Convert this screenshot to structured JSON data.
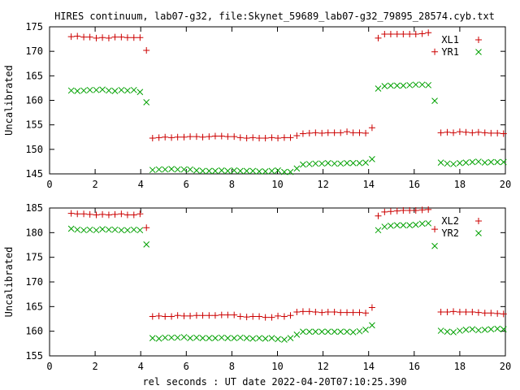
{
  "title": "HIRES continuum, lab07-g32, file:Skynet_59689_lab07-g32_79895_28574.cyb.txt",
  "xlabel": "rel seconds : UT date 2022-04-20T07:10:25.390",
  "colors": {
    "xl": "#cc0000",
    "yr": "#00a000"
  },
  "chart_data": [
    {
      "type": "scatter",
      "title": "HIRES continuum, lab07-g32, file:Skynet_59689_lab07-g32_79895_28574.cyb.txt",
      "xlabel": "",
      "ylabel": "Uncalibrated",
      "xlim": [
        0,
        20
      ],
      "ylim": [
        145,
        175
      ],
      "xticks": [
        "0",
        "2",
        "4",
        "6",
        "8",
        "10",
        "12",
        "14",
        "16",
        "18",
        "20"
      ],
      "yticks": [
        "145",
        "150",
        "155",
        "160",
        "165",
        "170",
        "175"
      ],
      "legend_position": "top-right",
      "series": [
        {
          "name": "XL1",
          "marker": "plus",
          "x": [
            0.95,
            1.22,
            1.5,
            1.77,
            2.05,
            2.32,
            2.6,
            2.87,
            3.15,
            3.42,
            3.7,
            3.97,
            4.25,
            4.52,
            4.8,
            5.07,
            5.35,
            5.62,
            5.9,
            6.17,
            6.45,
            6.72,
            7.0,
            7.27,
            7.55,
            7.82,
            8.1,
            8.37,
            8.65,
            8.92,
            9.2,
            9.47,
            9.75,
            10.02,
            10.3,
            10.57,
            10.85,
            11.12,
            11.4,
            11.67,
            11.95,
            12.22,
            12.5,
            12.77,
            13.05,
            13.32,
            13.6,
            13.87,
            14.15,
            14.42,
            14.7,
            14.97,
            15.25,
            15.52,
            15.8,
            16.07,
            16.35,
            16.62,
            16.9,
            17.17,
            17.45,
            17.72,
            18.0,
            18.27,
            18.55,
            18.82,
            19.1,
            19.37,
            19.65,
            19.92
          ],
          "y": [
            173.0,
            173.1,
            172.9,
            172.9,
            172.7,
            172.8,
            172.7,
            172.9,
            172.9,
            172.8,
            172.8,
            172.8,
            170.2,
            152.3,
            152.4,
            152.5,
            152.4,
            152.5,
            152.5,
            152.6,
            152.6,
            152.5,
            152.6,
            152.7,
            152.7,
            152.6,
            152.6,
            152.4,
            152.3,
            152.4,
            152.3,
            152.3,
            152.4,
            152.3,
            152.4,
            152.4,
            152.8,
            153.2,
            153.3,
            153.4,
            153.3,
            153.4,
            153.4,
            153.4,
            153.6,
            153.4,
            153.4,
            153.3,
            154.4,
            172.7,
            173.5,
            173.5,
            173.5,
            173.5,
            173.5,
            173.5,
            173.6,
            173.8,
            169.9,
            153.4,
            153.5,
            153.4,
            153.6,
            153.5,
            153.4,
            153.5,
            153.4,
            153.3,
            153.3,
            153.2
          ]
        },
        {
          "name": "YR1",
          "marker": "cross",
          "x": [
            0.95,
            1.22,
            1.5,
            1.77,
            2.05,
            2.32,
            2.6,
            2.87,
            3.15,
            3.42,
            3.7,
            3.97,
            4.25,
            4.52,
            4.8,
            5.07,
            5.35,
            5.62,
            5.9,
            6.17,
            6.45,
            6.72,
            7.0,
            7.27,
            7.55,
            7.82,
            8.1,
            8.37,
            8.65,
            8.92,
            9.2,
            9.47,
            9.75,
            10.02,
            10.3,
            10.57,
            10.85,
            11.12,
            11.4,
            11.67,
            11.95,
            12.22,
            12.5,
            12.77,
            13.05,
            13.32,
            13.6,
            13.87,
            14.15,
            14.42,
            14.7,
            14.97,
            15.25,
            15.52,
            15.8,
            16.07,
            16.35,
            16.62,
            16.9,
            17.17,
            17.45,
            17.72,
            18.0,
            18.27,
            18.55,
            18.82,
            19.1,
            19.37,
            19.65,
            19.92
          ],
          "y": [
            162.0,
            161.9,
            162.0,
            162.1,
            162.1,
            162.2,
            162.0,
            161.9,
            162.1,
            162.0,
            162.1,
            161.7,
            159.6,
            145.8,
            145.9,
            145.9,
            146.0,
            145.9,
            145.9,
            145.9,
            145.7,
            145.6,
            145.6,
            145.6,
            145.7,
            145.6,
            145.7,
            145.6,
            145.6,
            145.6,
            145.5,
            145.5,
            145.6,
            145.7,
            145.4,
            145.4,
            146.1,
            146.9,
            147.0,
            147.1,
            147.1,
            147.2,
            147.1,
            147.1,
            147.2,
            147.2,
            147.2,
            147.3,
            148.0,
            162.4,
            162.9,
            163.0,
            163.0,
            163.0,
            163.1,
            163.2,
            163.2,
            163.1,
            159.9,
            147.3,
            147.1,
            147.0,
            147.2,
            147.3,
            147.4,
            147.5,
            147.3,
            147.4,
            147.4,
            147.4
          ]
        }
      ]
    },
    {
      "type": "scatter",
      "title": "",
      "xlabel": "rel seconds : UT date 2022-04-20T07:10:25.390",
      "ylabel": "Uncalibrated",
      "xlim": [
        0,
        20
      ],
      "ylim": [
        155,
        185
      ],
      "xticks": [
        "0",
        "2",
        "4",
        "6",
        "8",
        "10",
        "12",
        "14",
        "16",
        "18",
        "20"
      ],
      "yticks": [
        "155",
        "160",
        "165",
        "170",
        "175",
        "180",
        "185"
      ],
      "legend_position": "top-right",
      "series": [
        {
          "name": "XL2",
          "marker": "plus",
          "x": [
            0.95,
            1.22,
            1.5,
            1.77,
            2.05,
            2.32,
            2.6,
            2.87,
            3.15,
            3.42,
            3.7,
            3.97,
            4.25,
            4.52,
            4.8,
            5.07,
            5.35,
            5.62,
            5.9,
            6.17,
            6.45,
            6.72,
            7.0,
            7.27,
            7.55,
            7.82,
            8.1,
            8.37,
            8.65,
            8.92,
            9.2,
            9.47,
            9.75,
            10.02,
            10.3,
            10.57,
            10.85,
            11.12,
            11.4,
            11.67,
            11.95,
            12.22,
            12.5,
            12.77,
            13.05,
            13.32,
            13.6,
            13.87,
            14.15,
            14.42,
            14.7,
            14.97,
            15.25,
            15.52,
            15.8,
            16.07,
            16.35,
            16.62,
            16.9,
            17.17,
            17.45,
            17.72,
            18.0,
            18.27,
            18.55,
            18.82,
            19.1,
            19.37,
            19.65,
            19.92
          ],
          "y": [
            183.9,
            183.8,
            183.8,
            183.7,
            183.6,
            183.7,
            183.6,
            183.7,
            183.8,
            183.6,
            183.6,
            183.8,
            181.0,
            163.0,
            163.1,
            163.0,
            163.0,
            163.2,
            163.1,
            163.1,
            163.2,
            163.2,
            163.2,
            163.2,
            163.3,
            163.3,
            163.3,
            163.0,
            162.9,
            163.0,
            163.0,
            162.8,
            162.8,
            163.1,
            163.0,
            163.2,
            163.9,
            164.0,
            164.0,
            163.9,
            163.8,
            163.9,
            163.9,
            163.8,
            163.8,
            163.8,
            163.8,
            163.7,
            164.8,
            183.4,
            184.2,
            184.3,
            184.4,
            184.5,
            184.5,
            184.5,
            184.6,
            184.7,
            180.7,
            163.9,
            163.9,
            164.0,
            163.9,
            163.9,
            163.9,
            163.8,
            163.7,
            163.7,
            163.6,
            163.5
          ]
        },
        {
          "name": "YR2",
          "marker": "cross",
          "x": [
            0.95,
            1.22,
            1.5,
            1.77,
            2.05,
            2.32,
            2.6,
            2.87,
            3.15,
            3.42,
            3.7,
            3.97,
            4.25,
            4.52,
            4.8,
            5.07,
            5.35,
            5.62,
            5.9,
            6.17,
            6.45,
            6.72,
            7.0,
            7.27,
            7.55,
            7.82,
            8.1,
            8.37,
            8.65,
            8.92,
            9.2,
            9.47,
            9.75,
            10.02,
            10.3,
            10.57,
            10.85,
            11.12,
            11.4,
            11.67,
            11.95,
            12.22,
            12.5,
            12.77,
            13.05,
            13.32,
            13.6,
            13.87,
            14.15,
            14.42,
            14.7,
            14.97,
            15.25,
            15.52,
            15.8,
            16.07,
            16.35,
            16.62,
            16.9,
            17.17,
            17.45,
            17.72,
            18.0,
            18.27,
            18.55,
            18.82,
            19.1,
            19.37,
            19.65,
            19.92
          ],
          "y": [
            180.8,
            180.6,
            180.5,
            180.6,
            180.5,
            180.7,
            180.6,
            180.6,
            180.5,
            180.5,
            180.6,
            180.5,
            177.6,
            158.6,
            158.5,
            158.7,
            158.7,
            158.7,
            158.8,
            158.6,
            158.7,
            158.6,
            158.6,
            158.6,
            158.7,
            158.6,
            158.6,
            158.7,
            158.6,
            158.5,
            158.6,
            158.5,
            158.6,
            158.4,
            158.3,
            158.6,
            159.3,
            159.9,
            159.9,
            159.9,
            159.9,
            159.9,
            159.9,
            159.9,
            159.9,
            159.8,
            160.0,
            160.3,
            161.2,
            180.5,
            181.2,
            181.4,
            181.5,
            181.5,
            181.5,
            181.6,
            181.8,
            181.9,
            177.3,
            160.1,
            159.9,
            159.8,
            160.1,
            160.3,
            160.4,
            160.2,
            160.3,
            160.4,
            160.5,
            160.4
          ]
        }
      ]
    }
  ]
}
